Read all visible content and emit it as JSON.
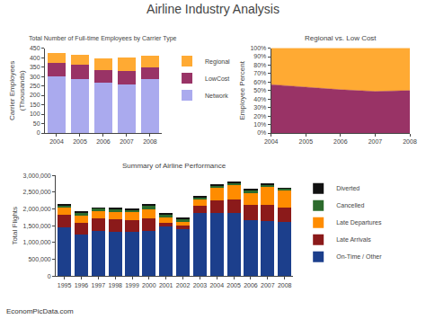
{
  "title": "Airline Industry Analysis",
  "annotations": [
    "EconomPicData.com"
  ],
  "chart_data": [
    {
      "type": "bar",
      "stacked": true,
      "title": "Total Number of Full-time Employees by Carrier Type",
      "ylabel": "Carrier Employees\n(Thousands)",
      "categories": [
        "2004",
        "2005",
        "2006",
        "2007",
        "2008"
      ],
      "series": [
        {
          "name": "Network",
          "color": "#aaaaee",
          "values": [
            300,
            285,
            265,
            258,
            285
          ]
        },
        {
          "name": "LowCost",
          "color": "#993366",
          "values": [
            70,
            75,
            70,
            72,
            65
          ]
        },
        {
          "name": "Regional",
          "color": "#ffaa33",
          "values": [
            55,
            55,
            62,
            72,
            60
          ]
        }
      ],
      "ylim": [
        0,
        450
      ],
      "yticks": [
        0,
        50,
        100,
        150,
        200,
        250,
        300,
        350,
        400,
        450
      ],
      "grid": false,
      "legend": "right"
    },
    {
      "type": "area",
      "stacked": true,
      "title": "Regional vs. Low Cost",
      "ylabel": "Employee Percent",
      "x": [
        2004,
        2005,
        2006,
        2007,
        2008
      ],
      "series": [
        {
          "color": "#993366",
          "values": [
            57,
            54,
            51,
            49,
            50
          ]
        },
        {
          "color": "#ffaa33",
          "values": [
            43,
            46,
            49,
            51,
            50
          ]
        }
      ],
      "xlim": [
        2004,
        2008
      ],
      "xticks": [
        2004,
        2005,
        2006,
        2007,
        2008
      ],
      "ylim": [
        0,
        100
      ],
      "yticks": [
        {
          "value": 0,
          "label": "0%"
        },
        {
          "value": 10,
          "label": "10%"
        },
        {
          "value": 20,
          "label": "20%"
        },
        {
          "value": 30,
          "label": "30%"
        },
        {
          "value": 40,
          "label": "40%"
        },
        {
          "value": 50,
          "label": "50%"
        },
        {
          "value": 60,
          "label": "60%"
        },
        {
          "value": 70,
          "label": "70%"
        },
        {
          "value": 80,
          "label": "80%"
        },
        {
          "value": 90,
          "label": "90%"
        },
        {
          "value": 100,
          "label": "100%"
        }
      ],
      "grid": false
    },
    {
      "type": "bar",
      "stacked": true,
      "title": "Summary of Airline Performance",
      "ylabel": "Total Flights",
      "categories": [
        "1995",
        "1996",
        "1997",
        "1998",
        "1999",
        "2000",
        "2001",
        "2002",
        "2003",
        "2004",
        "2005",
        "2006",
        "2007",
        "2008"
      ],
      "series": [
        {
          "name": "On-Time / Other",
          "color": "#1c3f8c",
          "values": [
            1440000,
            1230000,
            1340000,
            1320000,
            1310000,
            1340000,
            1480000,
            1390000,
            1880000,
            1870000,
            1870000,
            1680000,
            1640000,
            1620000
          ]
        },
        {
          "name": "Late Arrivals",
          "color": "#8b1a1a",
          "values": [
            380000,
            360000,
            370000,
            370000,
            370000,
            380000,
            120000,
            110000,
            220000,
            390000,
            410000,
            440000,
            490000,
            430000
          ]
        },
        {
          "name": "Late Departures",
          "color": "#ff8c00",
          "values": [
            220000,
            220000,
            220000,
            220000,
            220000,
            280000,
            140000,
            120000,
            180000,
            370000,
            430000,
            360000,
            520000,
            490000
          ]
        },
        {
          "name": "Cancelled",
          "color": "#2d6b2d",
          "values": [
            70000,
            70000,
            80000,
            80000,
            80000,
            90000,
            90000,
            80000,
            60000,
            70000,
            70000,
            80000,
            70000,
            60000
          ]
        },
        {
          "name": "Diverted",
          "color": "#111111",
          "values": [
            30000,
            25000,
            25000,
            25000,
            25000,
            30000,
            20000,
            20000,
            20000,
            25000,
            25000,
            30000,
            25000,
            25000
          ]
        }
      ],
      "ylim": [
        0,
        3000000
      ],
      "yticks": [
        0,
        {
          "value": 500000,
          "label": "500,000"
        },
        {
          "value": 1000000,
          "label": "1,000,000"
        },
        {
          "value": 1500000,
          "label": "1,500,000"
        },
        {
          "value": 2000000,
          "label": "2,000,000"
        },
        {
          "value": 2500000,
          "label": "2,500,000"
        },
        {
          "value": 3000000,
          "label": "3,000,000"
        }
      ],
      "grid": false,
      "legend": "right"
    }
  ]
}
